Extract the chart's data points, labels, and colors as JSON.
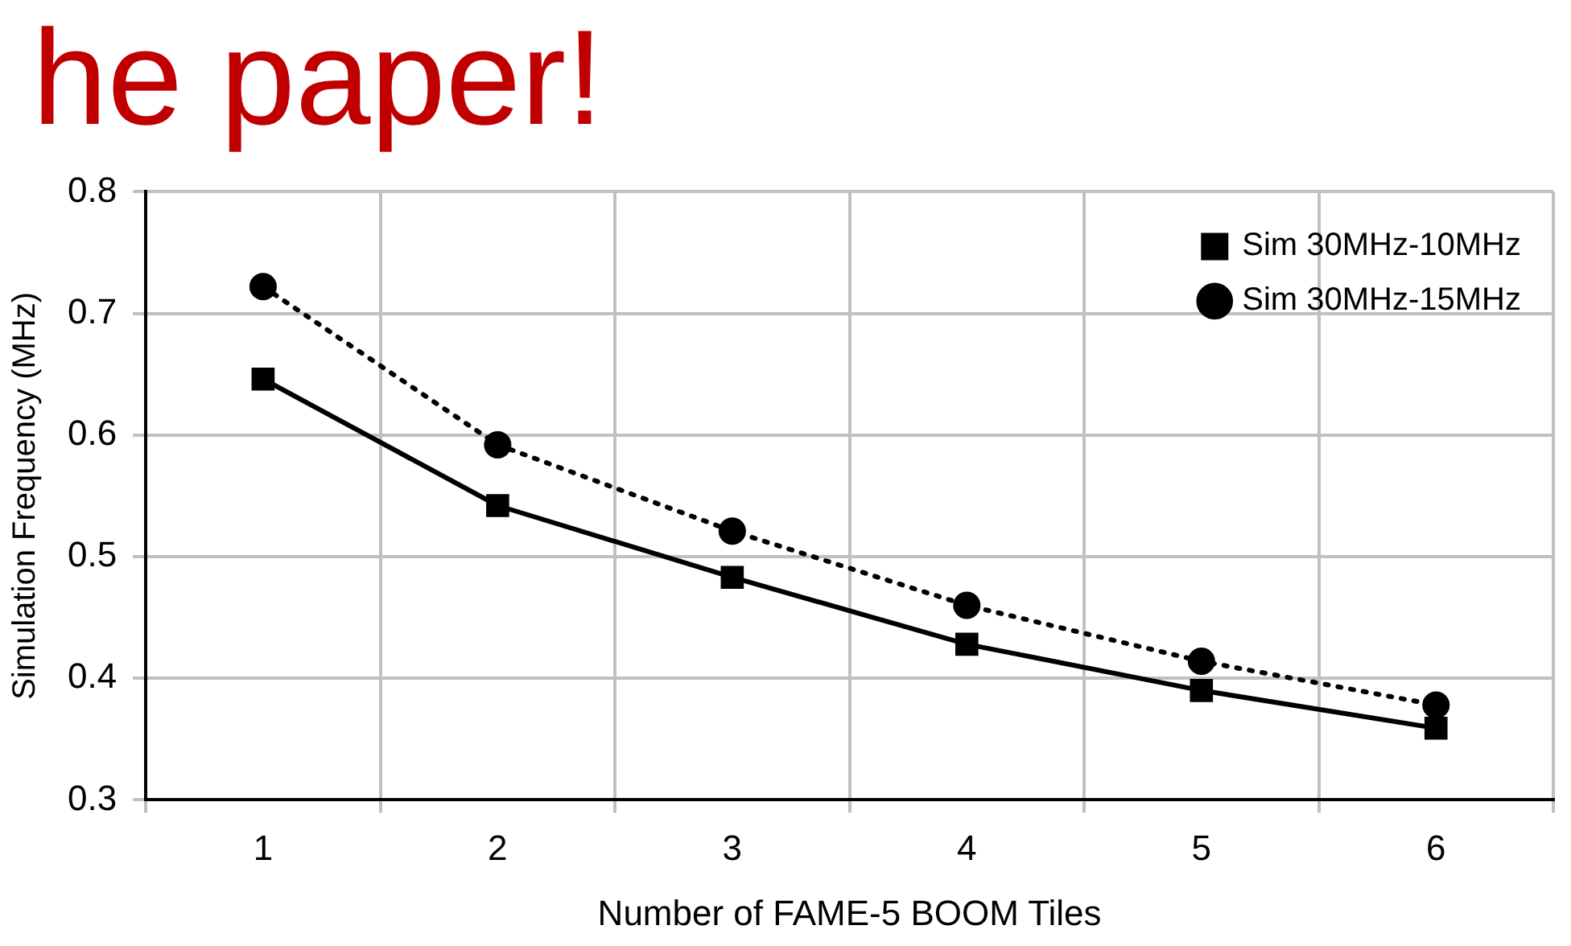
{
  "chart_data": {
    "type": "line",
    "xlabel": "Number of FAME-5 BOOM Tiles",
    "ylabel": "Simulation Frequency (MHz)",
    "annotations": [
      "he paper!"
    ],
    "categories": [
      "1",
      "2",
      "3",
      "4",
      "5",
      "6"
    ],
    "series": [
      {
        "name": "Sim 30MHz-10MHz",
        "color": "#000000",
        "marker": "square",
        "line_style": "solid",
        "values": [
          0.646,
          0.542,
          0.483,
          0.428,
          0.39,
          0.359
        ]
      },
      {
        "name": "Sim 30MHz-15MHz",
        "color": "#000000",
        "marker": "circle",
        "line_style": "dotted",
        "values": [
          0.722,
          0.592,
          0.521,
          0.46,
          0.414,
          0.378
        ]
      }
    ],
    "ylim": [
      0.3,
      0.8
    ],
    "yticks": [
      0.3,
      0.4,
      0.5,
      0.6,
      0.7,
      0.8
    ],
    "grid": true,
    "legend": "top right"
  }
}
